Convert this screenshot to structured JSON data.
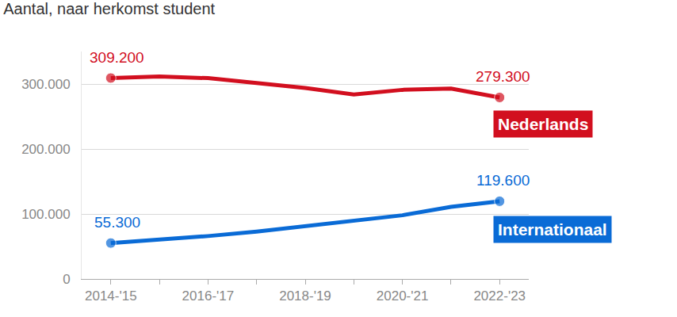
{
  "chart_data": {
    "type": "line",
    "title": "Aantal, naar herkomst student",
    "categories": [
      "2014-'15",
      null,
      "2016-'17",
      null,
      "2018-'19",
      null,
      "2020-'21",
      null,
      "2022-'23"
    ],
    "series": [
      {
        "name": "Nederlands",
        "color": "#d20f1f",
        "values": [
          309200,
          311500,
          309000,
          302000,
          294000,
          284000,
          291000,
          293000,
          279300
        ],
        "value_labels": [
          "309.200",
          null,
          null,
          null,
          null,
          null,
          null,
          null,
          "279.300"
        ]
      },
      {
        "name": "Internationaal",
        "color": "#0a6bd6",
        "values": [
          55300,
          60000,
          66000,
          73000,
          81000,
          89000,
          98000,
          111000,
          119600
        ],
        "value_labels": [
          "55.300",
          null,
          null,
          null,
          null,
          null,
          null,
          null,
          "119.600"
        ]
      }
    ],
    "ylim": [
      0,
      350000
    ],
    "yticks": [
      0,
      {
        "value": 100000,
        "label": "100.000"
      },
      {
        "value": 200000,
        "label": "200.000"
      },
      {
        "value": 300000,
        "label": "300.000"
      }
    ],
    "grid": true
  }
}
